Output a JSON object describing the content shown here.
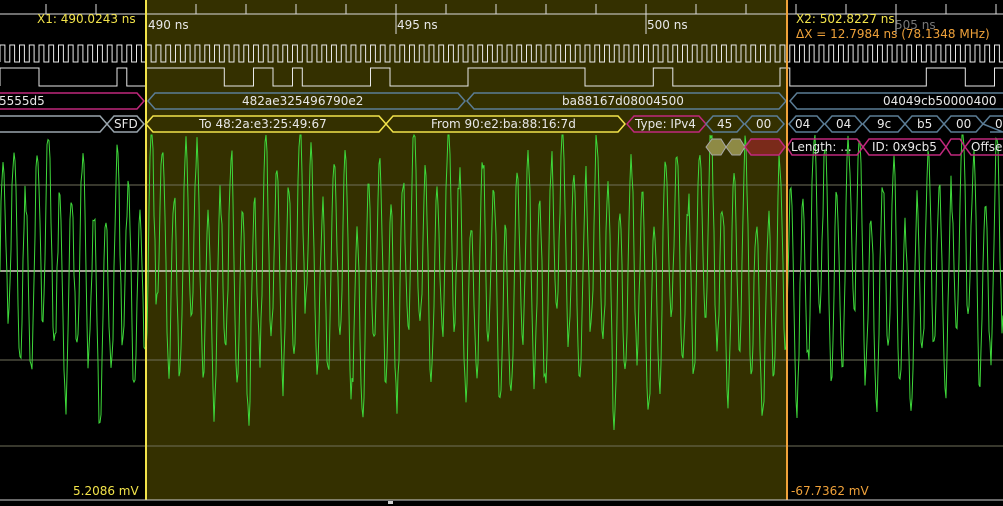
{
  "timebase": {
    "tick_labels": [
      "490 ns",
      "495 ns",
      "500 ns",
      "505 ns"
    ]
  },
  "cursors": {
    "x1_label": "X1: 490.0243 ns",
    "x2_label": "X2: 502.8227 ns",
    "delta_label": "ΔX = 12.7984 ns (78.1348 MHz)",
    "y1_value": "5.2086 mV",
    "y2_value": "-67.7362 mV"
  },
  "decode_rows": {
    "bytes": [
      "5555d5",
      "482ae325496790e2",
      "ba88167d08004500",
      "04049cb50000400"
    ],
    "ethernet": [
      "SFD",
      "To 48:2a:e3:25:49:67",
      "From 90:e2:ba:88:16:7d",
      "Type: IPv4",
      "45",
      "00",
      "04",
      "04",
      "9c",
      "b5",
      "00",
      "0"
    ],
    "ip": [
      "Length: ...",
      "ID: 0x9cb5",
      "Offse"
    ]
  },
  "colors": {
    "cursor1": "#f2e34a",
    "cursor2": "#f0a23a",
    "waveform": "#3ed83a",
    "highlight": "#3a3300",
    "magenta": "#c0287c",
    "steel": "#5b7d96"
  }
}
